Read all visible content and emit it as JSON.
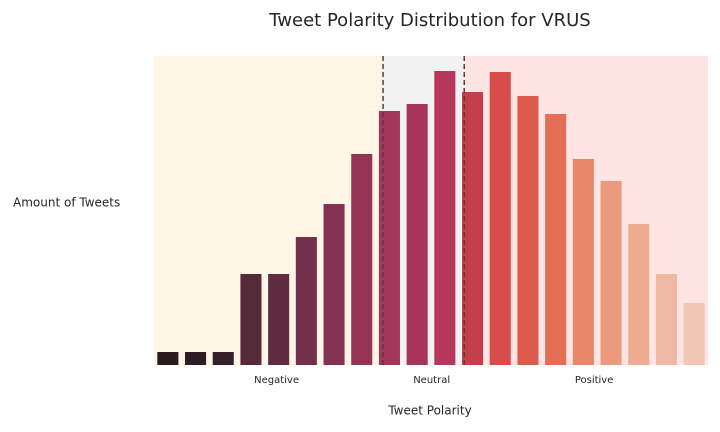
{
  "chart_data": {
    "type": "bar",
    "title": "Tweet Polarity Distribution for VRUS",
    "x_label": "Tweet Polarity",
    "y_label": "Amount of Tweets",
    "categories": [
      null,
      null,
      null,
      null,
      null,
      null,
      null,
      null,
      null,
      null,
      null,
      null,
      null,
      null,
      null,
      null,
      null,
      null,
      null,
      null
    ],
    "values": [
      13,
      13,
      13,
      91,
      91,
      128,
      161,
      211,
      254,
      261,
      294,
      273,
      293,
      269,
      251,
      206,
      184,
      141,
      91,
      62
    ],
    "colors": [
      "#2a1a1d",
      "#2f1c22",
      "#35202a",
      "#552a3a",
      "#5f2c41",
      "#742f4a",
      "#843251",
      "#933455",
      "#a3365a",
      "#a8335d",
      "#b7365b",
      "#c53e4c",
      "#d64d4a",
      "#dc5b4c",
      "#e46e55",
      "#e88669",
      "#eb9a7d",
      "#eeab92",
      "#f0b7a2",
      "#f2c6b4"
    ],
    "ylim": [
      0,
      309
    ],
    "xlim": [
      0,
      20
    ],
    "regions": [
      {
        "label": "Negative",
        "start": 0,
        "end": 8.27,
        "color": "#fef5e4"
      },
      {
        "label": "Neutral",
        "start": 8.27,
        "end": 11.2,
        "color": "#f2f2f2"
      },
      {
        "label": "Positive",
        "start": 11.2,
        "end": 20,
        "color": "#ffe4e4"
      }
    ],
    "thresholds": [
      8.27,
      11.2
    ],
    "threshold_color": "#5a3a3a"
  }
}
